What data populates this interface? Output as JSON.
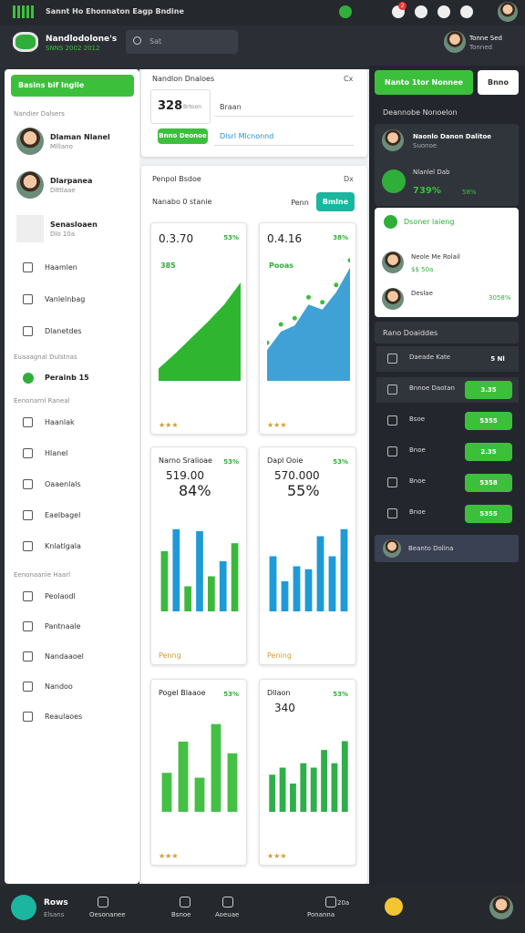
{
  "topbar": {
    "title": "Sannt Ho Ehonnaton Eagp Bndine",
    "badge": "2"
  },
  "header": {
    "brand": "Nandlodolone's",
    "subtitle": "SNNS 2002 2012",
    "search": "Sat",
    "user": "Tonne Sed",
    "user_sub": "Tonned"
  },
  "sidebar": {
    "button": "Basins bif Inglie",
    "section1": "Nandier Dalsers",
    "contacts": [
      {
        "name": "Dlaman Nlanel",
        "sub": "Mlllano"
      },
      {
        "name": "Dlarpanea",
        "sub": "Dlttlaae"
      },
      {
        "name": "Senasloaen",
        "sub": "Dlo 10a"
      }
    ],
    "items1": [
      "Haamlen",
      "Vanlelnbag",
      "Dlanetdes"
    ],
    "section2": "Euaaagnal Dulstnas",
    "active": "Perainb 15",
    "section3": "Eenonarnl Raneal",
    "items2": [
      "Haanlak",
      "Hlanel",
      "Oaaenlals",
      "Eaelbagel",
      "Knlatlgala"
    ],
    "section4": "Eenonaanle Haarl",
    "items3": [
      "Peolaodl",
      "Pantnaale",
      "Nandaaoel",
      "Nandoo",
      "Reaulaoes"
    ]
  },
  "main": {
    "form": {
      "title": "Nandlon Dnaloes",
      "close": "Cx",
      "value": "328",
      "value_sub": "Brtoon",
      "field": "Braan",
      "button": "Bnno Deonoe",
      "link": "Dlsrl Mlcnonnd"
    },
    "panel": {
      "title": "Penpol Bsdoe",
      "close": "Dx",
      "sub": "Nanabo 0 stanie",
      "btn1": "Penn",
      "btn2": "Bmlne"
    },
    "cards": [
      {
        "title": "0.3.70",
        "pct": "53%",
        "badge": "385",
        "footer": "★★★",
        "chart": {
          "type": "area",
          "ylim": [
            0,
            100
          ],
          "series": [
            {
              "color": "#2fb52f",
              "values": [
                10,
                22,
                35,
                48,
                62,
                80
              ]
            }
          ]
        }
      },
      {
        "title": "0.4.16",
        "pct": "38%",
        "badge": "Pooas",
        "footer": "★★★",
        "chart": {
          "type": "line",
          "ylim": [
            0,
            100
          ],
          "series": [
            {
              "color": "#1e90d0",
              "values": [
                25,
                40,
                45,
                62,
                58,
                72,
                92
              ]
            }
          ]
        }
      },
      {
        "title": "Narno Sralioae",
        "pct": "53%",
        "value": "519.00",
        "value_pct": "84%",
        "footer": "Penng",
        "chart": {
          "type": "bar",
          "ylim": [
            0,
            100
          ],
          "series": [
            {
              "color": "#3cb83c",
              "values": [
                60,
                82,
                25,
                80,
                35,
                50,
                68
              ]
            }
          ]
        }
      },
      {
        "title": "Dapl Ooie",
        "pct": "53%",
        "value": "570.000",
        "value_pct": "55%",
        "footer": "Pening",
        "chart": {
          "type": "bar",
          "ylim": [
            0,
            100
          ],
          "series": [
            {
              "color": "#1e9ad6",
              "values": [
                55,
                30,
                45,
                42,
                75,
                55,
                82
              ]
            }
          ]
        }
      },
      {
        "title": "Pogel Blaaoe",
        "pct": "53%",
        "footer": "★★★",
        "chart": {
          "type": "bar",
          "ylim": [
            0,
            100
          ],
          "series": [
            {
              "color": "#44c044",
              "values": [
                40,
                72,
                35,
                90,
                60
              ]
            }
          ]
        }
      },
      {
        "title": "Dllaon",
        "pct": "53%",
        "value": "340",
        "footer": "★★★",
        "chart": {
          "type": "bar",
          "ylim": [
            0,
            100
          ],
          "series": [
            {
              "color": "#2fae4a",
              "values": [
                42,
                50,
                32,
                55,
                50,
                70,
                55,
                80
              ]
            }
          ]
        }
      }
    ]
  },
  "right": {
    "button": "Nanto 1tor Nonnee",
    "button2": "Bnno",
    "heading": "Deannobe Nonoelon",
    "profile": {
      "name": "Naonlo Danon Dalitoe",
      "sub": "Suonoe",
      "label": "Nlanlel Dab",
      "value": "739%",
      "pct": "58%"
    },
    "list_title": "Dsoner laieng",
    "people": [
      {
        "name": "Neole Me Rolail",
        "sub": "$$ 50a"
      },
      {
        "name": "Deslae",
        "sub": "3058%"
      }
    ],
    "table_title": "Rano Doaiddes",
    "rows": [
      {
        "name": "Daeade Kate",
        "value": "5 Nl"
      },
      {
        "name": "Bnnoe Daotan",
        "value": "3.35"
      },
      {
        "name": "Bsoe",
        "value": "5355"
      },
      {
        "name": "Bnoe",
        "value": "2.35"
      },
      {
        "name": "Bnoe",
        "value": "5358"
      },
      {
        "name": "Bnoe",
        "value": "5355"
      }
    ],
    "footer": "Beanto Dolina"
  },
  "bottom": {
    "app": "Rows",
    "app_sub": "Elsans",
    "tabs": [
      "Oesonanee",
      "Bsnoe",
      "Aoeuae",
      "Ponanna"
    ],
    "count": "20a"
  }
}
